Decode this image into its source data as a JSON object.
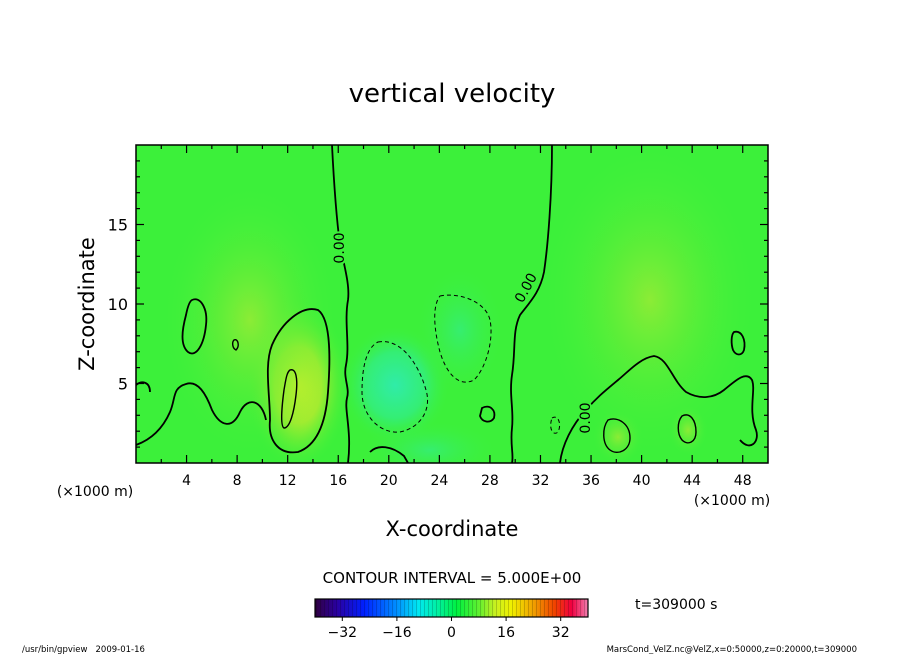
{
  "chart_data": {
    "type": "heatmap",
    "title": "vertical velocity",
    "xlabel": "X-coordinate",
    "ylabel": "Z-coordinate",
    "x_unit_left": "(×1000 m)",
    "x_unit_right": "(×1000 m)",
    "xlim": [
      0,
      50
    ],
    "ylim": [
      0,
      20
    ],
    "x_ticks": [
      "4",
      "8",
      "12",
      "16",
      "20",
      "24",
      "28",
      "32",
      "36",
      "40",
      "44",
      "48"
    ],
    "y_ticks": [
      "5",
      "10",
      "15"
    ],
    "contour_interval_text": "CONTOUR INTERVAL = 5.000E+00",
    "contour_labels": [
      "0.00",
      "0.00",
      "0.00"
    ],
    "time_text": "t=309000 s",
    "colorbar": {
      "min": -40,
      "max": 40,
      "tick_labels": [
        "−32",
        "−16",
        "0",
        "16",
        "32"
      ],
      "colors": [
        "#300040",
        "#2a00a0",
        "#0020ff",
        "#0090ff",
        "#00e8f0",
        "#00f0a0",
        "#00f040",
        "#60f030",
        "#c8f020",
        "#f0f000",
        "#f0a000",
        "#f04000",
        "#f00040",
        "#f080b0"
      ]
    },
    "features": [
      {
        "type": "positive",
        "x": 12.5,
        "z": 4.0,
        "value": 10
      },
      {
        "type": "negative",
        "x": 19.5,
        "z": 4.5,
        "value": -5
      },
      {
        "type": "negative",
        "x": 25.5,
        "z": 8.0,
        "value": -5
      },
      {
        "type": "positive",
        "x": 38.0,
        "z": 1.5,
        "value": 5
      },
      {
        "type": "positive",
        "x": 43.5,
        "z": 2.0,
        "value": 5
      }
    ]
  },
  "footer": {
    "left": "/usr/bin/gpview   2009-01-16",
    "right": "MarsCond_VelZ.nc@VelZ,x=0:50000,z=0:20000,t=309000"
  }
}
